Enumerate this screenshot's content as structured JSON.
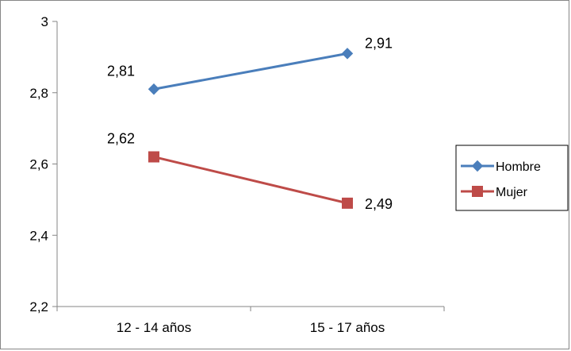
{
  "chart_data": {
    "type": "line",
    "categories": [
      "12 - 14 años",
      "15 - 17 años"
    ],
    "series": [
      {
        "name": "Hombre",
        "values": [
          2.81,
          2.91
        ],
        "labels": [
          "2,81",
          "2,91"
        ],
        "color": "#4a7ebb",
        "marker": "diamond"
      },
      {
        "name": "Mujer",
        "values": [
          2.62,
          2.49
        ],
        "labels": [
          "2,62",
          "2,49"
        ],
        "color": "#be4b48",
        "marker": "square"
      }
    ],
    "ylim": [
      2.2,
      3.0
    ],
    "yticks": [
      {
        "value": 2.2,
        "label": "2,2"
      },
      {
        "value": 2.4,
        "label": "2,4"
      },
      {
        "value": 2.6,
        "label": "2,6"
      },
      {
        "value": 2.8,
        "label": "2,8"
      },
      {
        "value": 3.0,
        "label": "3"
      }
    ],
    "grid": false,
    "legend_position": "right",
    "title": "",
    "xlabel": "",
    "ylabel": ""
  }
}
